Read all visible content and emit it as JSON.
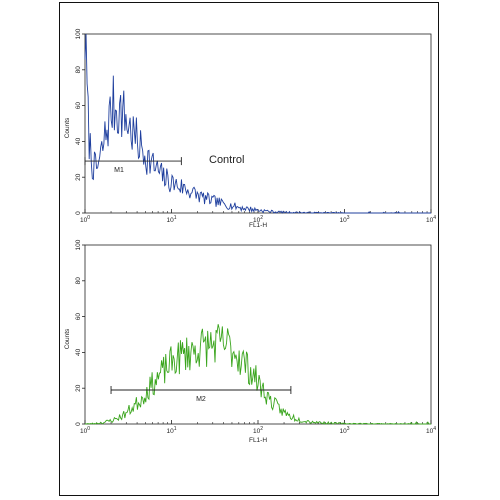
{
  "chart_data": [
    {
      "type": "area",
      "xlabel": "FL1-H",
      "ylabel": "Counts",
      "xscale": "log",
      "xlim": [
        1,
        10000
      ],
      "ylim": [
        0,
        100
      ],
      "x_ticks": [
        {
          "base": "10",
          "exp": "0",
          "value": 1
        },
        {
          "base": "10",
          "exp": "1",
          "value": 10
        },
        {
          "base": "10",
          "exp": "2",
          "value": 100
        },
        {
          "base": "10",
          "exp": "3",
          "value": 1000
        },
        {
          "base": "10",
          "exp": "4",
          "value": 10000
        }
      ],
      "y_ticks": [
        "0",
        "20",
        "40",
        "60",
        "80",
        "100"
      ],
      "color": "#1f3f9e",
      "series": [
        {
          "x": [
            1.0,
            1.1,
            1.2,
            1.35,
            1.5,
            1.7,
            1.9,
            2.1,
            2.4,
            2.7,
            3.0,
            3.4,
            3.8,
            4.3,
            5.0,
            5.8,
            6.8,
            8.0,
            10,
            12.5,
            16,
            20,
            25,
            32,
            40,
            50,
            63,
            80,
            100,
            130,
            160,
            200,
            300,
            500,
            1000,
            10000
          ],
          "values": [
            100,
            45,
            28,
            24,
            30,
            42,
            52,
            60,
            58,
            56,
            52,
            46,
            42,
            37,
            33,
            28,
            24,
            20,
            17,
            15,
            12.5,
            10,
            8,
            6.5,
            5,
            4,
            3,
            2.3,
            1.6,
            1.0,
            0.6,
            0.4,
            0.25,
            0.15,
            0.05,
            0
          ]
        }
      ],
      "gate": {
        "label": "M1",
        "x_start": 1,
        "x_end": 13,
        "y": 29
      },
      "annotation": "Control"
    },
    {
      "type": "area",
      "xlabel": "FL1-H",
      "ylabel": "Counts",
      "xscale": "log",
      "xlim": [
        1,
        10000
      ],
      "ylim": [
        0,
        100
      ],
      "x_ticks": [
        {
          "base": "10",
          "exp": "0",
          "value": 1
        },
        {
          "base": "10",
          "exp": "1",
          "value": 10
        },
        {
          "base": "10",
          "exp": "2",
          "value": 100
        },
        {
          "base": "10",
          "exp": "3",
          "value": 1000
        },
        {
          "base": "10",
          "exp": "4",
          "value": 10000
        }
      ],
      "y_ticks": [
        "0",
        "20",
        "40",
        "60",
        "80",
        "100"
      ],
      "color": "#3aa51d",
      "series": [
        {
          "x": [
            1.0,
            1.3,
            1.7,
            2.2,
            2.8,
            3.5,
            4.5,
            5.5,
            7.0,
            9.0,
            11,
            14,
            18,
            22,
            28,
            35,
            45,
            55,
            70,
            90,
            110,
            140,
            180,
            230,
            300,
            400,
            600,
            1000,
            10000
          ],
          "values": [
            0,
            0.3,
            1,
            2.5,
            5,
            9,
            14,
            20,
            26,
            32,
            36,
            39,
            41,
            43,
            44,
            45,
            44,
            40,
            34,
            27,
            20,
            13,
            8,
            4.5,
            2.5,
            1.3,
            0.6,
            0.2,
            0
          ]
        }
      ],
      "gate": {
        "label": "M2",
        "x_start": 2,
        "x_end": 240,
        "y": 19
      }
    }
  ]
}
